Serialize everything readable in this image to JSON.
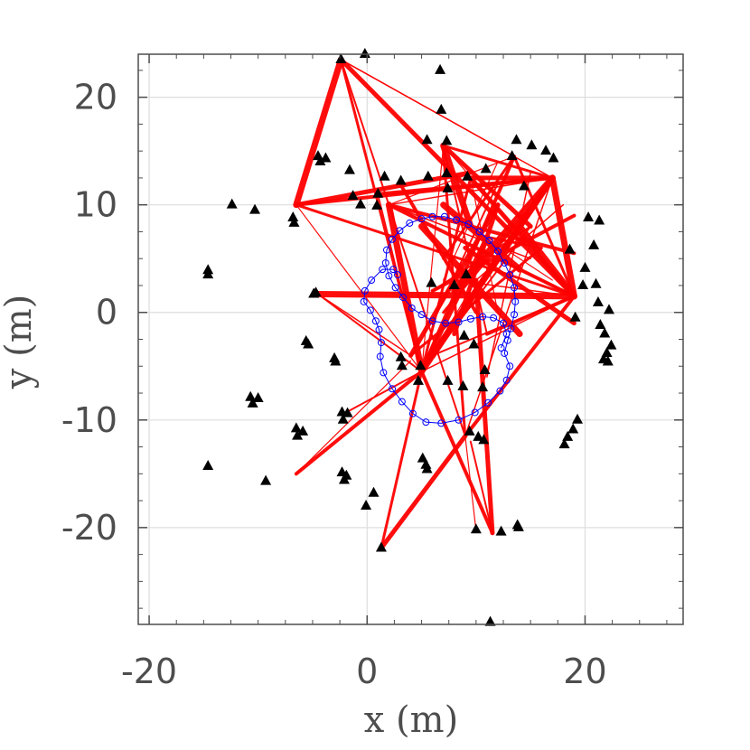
{
  "chart_data": {
    "type": "scatter",
    "title": "",
    "xlabel": "x (m)",
    "ylabel": "y (m)",
    "xlim": [
      -21,
      29
    ],
    "ylim": [
      -29,
      24
    ],
    "xticks": [
      -20,
      0,
      20
    ],
    "yticks": [
      -20,
      -10,
      0,
      10,
      20
    ],
    "xtick_labels": [
      "-20",
      "0",
      "20"
    ],
    "ytick_labels": [
      "-20",
      "-10",
      "0",
      "10",
      "20"
    ],
    "grid": true,
    "colors": {
      "landmarks": "#000000",
      "trajectory": "#0000ff",
      "links": "#ff0000",
      "grid": "#dddddd",
      "axes": "#4d4d4d"
    },
    "series": [
      {
        "marker": "triangle",
        "points": [
          [
            -2.4,
            23.5
          ],
          [
            -0.2,
            24
          ],
          [
            6.7,
            22.5
          ],
          [
            6.8,
            18.8
          ],
          [
            5.5,
            16
          ],
          [
            7.3,
            15.9
          ],
          [
            13.7,
            16
          ],
          [
            15.1,
            15.5
          ],
          [
            16.4,
            15
          ],
          [
            13.3,
            14.5
          ],
          [
            17.1,
            14.3
          ],
          [
            -4.5,
            14.5
          ],
          [
            -3.8,
            14.3
          ],
          [
            -4.3,
            14
          ],
          [
            -1.6,
            13.2
          ],
          [
            1.6,
            12.6
          ],
          [
            -1.3,
            10.8
          ],
          [
            -0.6,
            10
          ],
          [
            0.9,
            9.9
          ],
          [
            1,
            11
          ],
          [
            3.1,
            12.2
          ],
          [
            5.6,
            12.6
          ],
          [
            7.3,
            12.9
          ],
          [
            9.2,
            12.6
          ],
          [
            10.9,
            13.3
          ],
          [
            7.4,
            11.5
          ],
          [
            14.4,
            11.7
          ],
          [
            -12.4,
            10
          ],
          [
            -10.3,
            9.5
          ],
          [
            -6.8,
            8.8
          ],
          [
            -6.7,
            8.3
          ],
          [
            20.3,
            8.8
          ],
          [
            21.3,
            8.5
          ],
          [
            20.8,
            6.2
          ],
          [
            18.6,
            5.8
          ],
          [
            20,
            4.1
          ],
          [
            19.8,
            2.5
          ],
          [
            21,
            2.6
          ],
          [
            -14.6,
            3.9
          ],
          [
            -14.6,
            3.5
          ],
          [
            -4.9,
            1.7
          ],
          [
            -4.7,
            1.8
          ],
          [
            21.2,
            0.9
          ],
          [
            22.2,
            0.2
          ],
          [
            19.1,
            -0.5
          ],
          [
            5.9,
            2.7
          ],
          [
            8,
            2.5
          ],
          [
            9.1,
            3.5
          ],
          [
            -5.6,
            -2.7
          ],
          [
            -5.4,
            -3
          ],
          [
            -3,
            -4.3
          ],
          [
            -2.9,
            -4.6
          ],
          [
            21.4,
            -1.2
          ],
          [
            21.8,
            -2
          ],
          [
            22.4,
            -3.1
          ],
          [
            22,
            -3.8
          ],
          [
            22.1,
            -4.6
          ],
          [
            21.7,
            -4.4
          ],
          [
            8.9,
            -2.2
          ],
          [
            9.8,
            -3
          ],
          [
            3.1,
            -4.2
          ],
          [
            3.2,
            -5
          ],
          [
            4.9,
            -5
          ],
          [
            4.7,
            -6.4
          ],
          [
            7.4,
            -6.4
          ],
          [
            8.8,
            -6.9
          ],
          [
            10.6,
            -7
          ],
          [
            10.8,
            -5.4
          ],
          [
            -10.7,
            -7.9
          ],
          [
            -10.5,
            -8.5
          ],
          [
            -10,
            -8
          ],
          [
            -2.3,
            -9.3
          ],
          [
            -2.2,
            -10
          ],
          [
            -1.8,
            -9.4
          ],
          [
            -6.5,
            -10.8
          ],
          [
            -6.4,
            -11.5
          ],
          [
            -5.9,
            -11.1
          ],
          [
            9.4,
            -11.1
          ],
          [
            10.2,
            -11.6
          ],
          [
            10.7,
            -11.9
          ],
          [
            19.3,
            -10
          ],
          [
            18.9,
            -10.9
          ],
          [
            18.4,
            -11.6
          ],
          [
            18.1,
            -12.3
          ],
          [
            -14.6,
            -14.3
          ],
          [
            -2.3,
            -14.9
          ],
          [
            -2.1,
            -15.6
          ],
          [
            -1.9,
            -15.2
          ],
          [
            5.1,
            -13.6
          ],
          [
            5.4,
            -14.2
          ],
          [
            5.5,
            -14.6
          ],
          [
            -9.3,
            -15.7
          ],
          [
            0.6,
            -16.8
          ],
          [
            -0.1,
            -18
          ],
          [
            10,
            -20.2
          ],
          [
            12.3,
            -20.4
          ],
          [
            13.8,
            -19.8
          ],
          [
            13.9,
            -20
          ],
          [
            1.3,
            -21.9
          ],
          [
            11.3,
            -28.8
          ]
        ]
      },
      {
        "name": "",
        "marker": "circle",
        "line": true,
        "points": [
          [
            2.8,
            3.5
          ],
          [
            2.4,
            4
          ],
          [
            1.4,
            4
          ],
          [
            0.4,
            3
          ],
          [
            -0.2,
            2
          ],
          [
            -0.3,
            1
          ],
          [
            0.3,
            0.2
          ],
          [
            0.8,
            -0.8
          ],
          [
            1.1,
            -1.6
          ],
          [
            1.3,
            -2.8
          ],
          [
            1.2,
            -4.1
          ],
          [
            1.5,
            -5.6
          ],
          [
            2.3,
            -7.1
          ],
          [
            3.2,
            -8.3
          ],
          [
            4.2,
            -9.4
          ],
          [
            5.4,
            -10.2
          ],
          [
            6.8,
            -10.3
          ],
          [
            8.4,
            -10
          ],
          [
            9.9,
            -9.3
          ],
          [
            11.1,
            -8.4
          ],
          [
            12.2,
            -7.3
          ],
          [
            12.8,
            -6.3
          ],
          [
            13.1,
            -5
          ],
          [
            12.6,
            -3.8
          ],
          [
            12.9,
            -2.6
          ],
          [
            13.2,
            -1.5
          ],
          [
            13.5,
            -0.2
          ],
          [
            13.6,
            1
          ],
          [
            13.5,
            2.3
          ],
          [
            13.1,
            3.5
          ],
          [
            12.6,
            4.6
          ],
          [
            12,
            5.7
          ],
          [
            11.2,
            6.7
          ],
          [
            10.3,
            7.5
          ],
          [
            9.3,
            8.2
          ],
          [
            8.2,
            8.6
          ],
          [
            7.1,
            8.9
          ],
          [
            6,
            8.9
          ],
          [
            5,
            8.7
          ],
          [
            3.9,
            8.3
          ],
          [
            3,
            7.6
          ],
          [
            2.3,
            6.8
          ],
          [
            1.8,
            5.8
          ],
          [
            1.7,
            4.6
          ],
          [
            2,
            3.4
          ],
          [
            2.6,
            2.3
          ],
          [
            3.3,
            1.4
          ],
          [
            4.1,
            0.4
          ],
          [
            5,
            -0.2
          ],
          [
            6,
            -0.8
          ],
          [
            7.2,
            -1
          ],
          [
            8.4,
            -0.9
          ],
          [
            9.5,
            -0.6
          ],
          [
            10.6,
            -0.4
          ],
          [
            11.6,
            -0.5
          ],
          [
            12.5,
            -1
          ],
          [
            12.8,
            -2
          ],
          [
            12.3,
            -3.3
          ]
        ]
      }
    ],
    "links": [
      [
        [
          -2.4,
          23.5
        ],
        [
          17,
          12.5
        ]
      ],
      [
        [
          -2.4,
          23.5
        ],
        [
          5,
          -5.5
        ]
      ],
      [
        [
          -2.4,
          23.5
        ],
        [
          19,
          1.5
        ]
      ],
      [
        [
          -2.4,
          23.5
        ],
        [
          9,
          -11.5
        ]
      ],
      [
        [
          -2.4,
          23.5
        ],
        [
          -6.5,
          10
        ]
      ],
      [
        [
          -2.4,
          23.5
        ],
        [
          13.5,
          14.5
        ]
      ],
      [
        [
          -6.5,
          10
        ],
        [
          17,
          12.5
        ]
      ],
      [
        [
          -6.5,
          10
        ],
        [
          5,
          -5.5
        ]
      ],
      [
        [
          -6.5,
          10
        ],
        [
          19,
          1.5
        ]
      ],
      [
        [
          -6.5,
          10
        ],
        [
          9.5,
          13
        ]
      ],
      [
        [
          -4.5,
          1.7
        ],
        [
          5,
          -5.5
        ]
      ],
      [
        [
          -4.5,
          1.7
        ],
        [
          19,
          1.5
        ]
      ],
      [
        [
          -4.5,
          1.7
        ],
        [
          4,
          -4
        ]
      ],
      [
        [
          -6.5,
          -15
        ],
        [
          5,
          -5.5
        ]
      ],
      [
        [
          -6.5,
          -15
        ],
        [
          4,
          -4.5
        ]
      ],
      [
        [
          1.3,
          -21.9
        ],
        [
          5,
          -5.5
        ]
      ],
      [
        [
          1.3,
          -21.9
        ],
        [
          9,
          -11.5
        ]
      ],
      [
        [
          -2.3,
          -9.5
        ],
        [
          5,
          -5.5
        ]
      ],
      [
        [
          5,
          -5.5
        ],
        [
          17,
          12.5
        ]
      ],
      [
        [
          5,
          -5.5
        ],
        [
          19,
          1.5
        ]
      ],
      [
        [
          5,
          -5.5
        ],
        [
          13.5,
          14.5
        ]
      ],
      [
        [
          5,
          -5.5
        ],
        [
          7,
          15.5
        ]
      ],
      [
        [
          5,
          -5.5
        ],
        [
          9.5,
          12.5
        ]
      ],
      [
        [
          5,
          -5.5
        ],
        [
          11,
          7
        ]
      ],
      [
        [
          5,
          -5.5
        ],
        [
          15,
          8
        ]
      ],
      [
        [
          5,
          -5.5
        ],
        [
          2,
          10
        ]
      ],
      [
        [
          5,
          -5.5
        ],
        [
          1,
          11
        ]
      ],
      [
        [
          5,
          -5.5
        ],
        [
          11.5,
          -20.5
        ]
      ],
      [
        [
          5,
          -5.5
        ],
        [
          10,
          3
        ]
      ],
      [
        [
          4,
          -4
        ],
        [
          16,
          6
        ]
      ],
      [
        [
          4,
          -4
        ],
        [
          12,
          10
        ]
      ],
      [
        [
          6,
          -4
        ],
        [
          19,
          1.5
        ]
      ],
      [
        [
          6,
          -4
        ],
        [
          17,
          12.5
        ]
      ],
      [
        [
          9,
          -11.5
        ],
        [
          17,
          12.5
        ]
      ],
      [
        [
          9,
          -11.5
        ],
        [
          19,
          1.5
        ]
      ],
      [
        [
          9,
          -11.5
        ],
        [
          10,
          -20.3
        ]
      ],
      [
        [
          9,
          -11.5
        ],
        [
          7,
          15
        ]
      ],
      [
        [
          11.5,
          -20.5
        ],
        [
          10,
          3
        ]
      ],
      [
        [
          11.5,
          -20.5
        ],
        [
          9.5,
          -12
        ]
      ],
      [
        [
          17,
          12.5
        ],
        [
          19,
          1.5
        ]
      ],
      [
        [
          17,
          12.5
        ],
        [
          2,
          10
        ]
      ],
      [
        [
          17,
          12.5
        ],
        [
          1,
          11
        ]
      ],
      [
        [
          17,
          12.5
        ],
        [
          13.5,
          14.5
        ]
      ],
      [
        [
          17,
          12.5
        ],
        [
          7,
          15.5
        ]
      ],
      [
        [
          17,
          12.5
        ],
        [
          9.5,
          12.5
        ]
      ],
      [
        [
          17,
          12.5
        ],
        [
          11,
          4
        ]
      ],
      [
        [
          17,
          12.5
        ],
        [
          8,
          2
        ]
      ],
      [
        [
          17,
          12.5
        ],
        [
          13,
          6
        ]
      ],
      [
        [
          19,
          1.5
        ],
        [
          2,
          10
        ]
      ],
      [
        [
          19,
          1.5
        ],
        [
          7,
          15.5
        ]
      ],
      [
        [
          19,
          1.5
        ],
        [
          13.5,
          14.5
        ]
      ],
      [
        [
          19,
          1.5
        ],
        [
          9.5,
          12.5
        ]
      ],
      [
        [
          19,
          1.5
        ],
        [
          10,
          6
        ]
      ],
      [
        [
          19,
          1.5
        ],
        [
          14,
          8
        ]
      ],
      [
        [
          19,
          1.5
        ],
        [
          8,
          3
        ]
      ],
      [
        [
          19,
          1.5
        ],
        [
          11,
          -2
        ]
      ],
      [
        [
          13.5,
          14.5
        ],
        [
          2,
          10
        ]
      ],
      [
        [
          13.5,
          14.5
        ],
        [
          7,
          5
        ]
      ],
      [
        [
          7,
          15.5
        ],
        [
          15,
          8
        ]
      ],
      [
        [
          7,
          15.5
        ],
        [
          11,
          -2
        ]
      ],
      [
        [
          7,
          15.5
        ],
        [
          9.5,
          8
        ]
      ],
      [
        [
          2,
          10
        ],
        [
          15,
          5
        ]
      ],
      [
        [
          2,
          10
        ],
        [
          19,
          5.5
        ]
      ],
      [
        [
          9.5,
          12.5
        ],
        [
          12,
          0
        ]
      ],
      [
        [
          11,
          7
        ],
        [
          16,
          6
        ]
      ],
      [
        [
          12,
          10
        ],
        [
          8,
          -2
        ]
      ],
      [
        [
          15,
          8
        ],
        [
          6,
          2
        ]
      ],
      [
        [
          14,
          4
        ],
        [
          7,
          10
        ]
      ],
      [
        [
          10,
          3
        ],
        [
          18,
          10
        ]
      ],
      [
        [
          6,
          2
        ],
        [
          19,
          9
        ]
      ],
      [
        [
          8,
          9
        ],
        [
          17,
          3
        ]
      ],
      [
        [
          7,
          0
        ],
        [
          16,
          11
        ]
      ],
      [
        [
          9,
          6
        ],
        [
          19,
          -1
        ]
      ],
      [
        [
          12,
          12
        ],
        [
          6,
          -1
        ]
      ],
      [
        [
          5,
          8
        ],
        [
          14,
          -2
        ]
      ],
      [
        [
          15,
          13
        ],
        [
          11,
          -6
        ]
      ],
      [
        [
          3,
          12
        ],
        [
          10,
          0
        ]
      ],
      [
        [
          7,
          3
        ],
        [
          12,
          14
        ]
      ]
    ]
  }
}
